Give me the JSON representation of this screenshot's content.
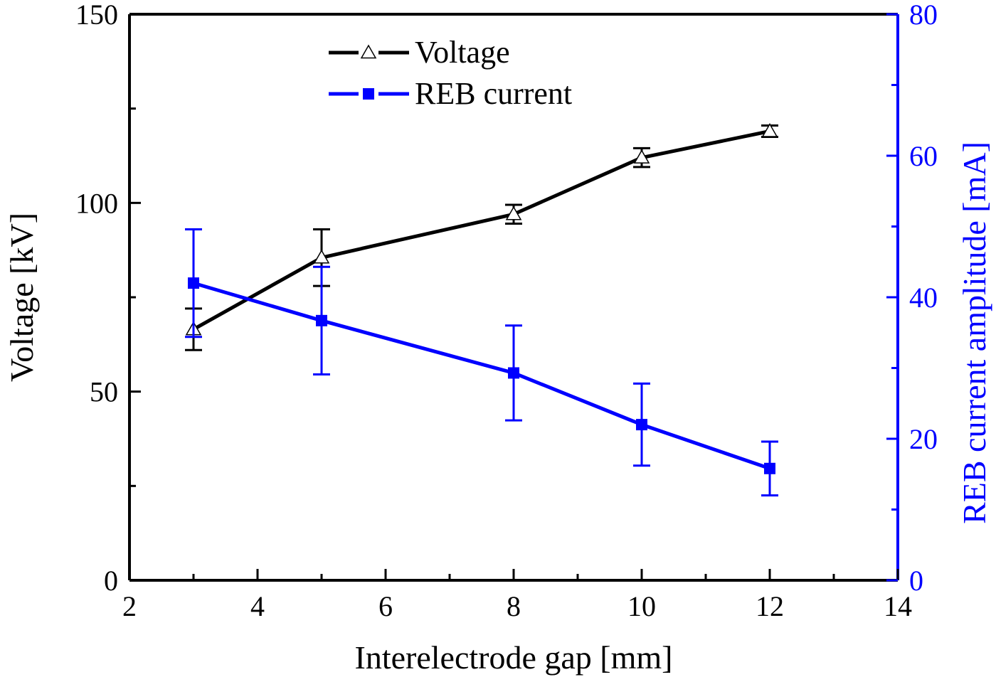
{
  "chart_data": {
    "type": "line",
    "title": "",
    "xlabel": "Interelectrode gap [mm]",
    "ylabel_left": "Voltage [kV]",
    "ylabel_right": "REB current amplitude [mA]",
    "xlim": [
      2,
      14
    ],
    "ylim_left": [
      0,
      150
    ],
    "ylim_right": [
      0,
      80
    ],
    "x_ticks": [
      2,
      4,
      6,
      8,
      10,
      12,
      14
    ],
    "x_tick_labels": [
      "2",
      "4",
      "6",
      "8",
      "10",
      "12",
      "14"
    ],
    "y_left_ticks": [
      0,
      50,
      100,
      150
    ],
    "y_left_tick_labels": [
      "0",
      "50",
      "100",
      "150"
    ],
    "y_right_ticks": [
      0,
      20,
      40,
      60,
      80
    ],
    "y_right_tick_labels": [
      "0",
      "20",
      "40",
      "60",
      "80"
    ],
    "grid": false,
    "legend_position": "top-center",
    "series": [
      {
        "name": "Voltage",
        "axis": "left",
        "color": "#000000",
        "marker": "open-triangle",
        "x": [
          3,
          5,
          8,
          10,
          12
        ],
        "y": [
          66.5,
          85.5,
          97,
          112,
          119
        ],
        "err_low": [
          5.5,
          7.5,
          2.5,
          2.5,
          1.5
        ],
        "err_high": [
          5.5,
          7.5,
          2.5,
          2.5,
          1.5
        ]
      },
      {
        "name": "REB current",
        "axis": "right",
        "color": "#0000ff",
        "marker": "filled-square",
        "x": [
          3,
          5,
          8,
          10,
          12
        ],
        "y": [
          42,
          36.7,
          29.3,
          22,
          15.8
        ],
        "err_low": [
          7.6,
          7.6,
          6.7,
          5.8,
          3.8
        ],
        "err_high": [
          7.6,
          7.6,
          6.7,
          5.8,
          3.8
        ]
      }
    ]
  }
}
